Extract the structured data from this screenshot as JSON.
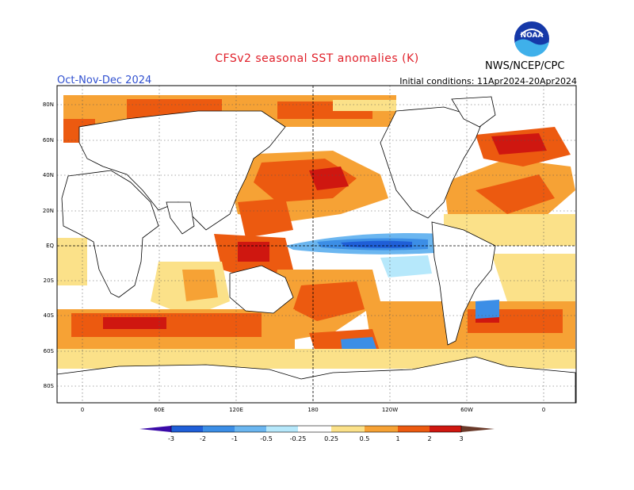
{
  "header": {
    "title": "CFSv2 seasonal SST anomalies (K)",
    "period": "Oct-Nov-Dec 2024",
    "initial_conditions": "Initial conditions: 11Apr2024-20Apr2024",
    "agency": "NWS/NCEP/CPC",
    "logo_text": "NOAA"
  },
  "map": {
    "lat_labels": [
      "80N",
      "60N",
      "40N",
      "20N",
      "EQ",
      "20S",
      "40S",
      "60S",
      "80S"
    ],
    "lon_labels": [
      "0",
      "60E",
      "120E",
      "180",
      "120W",
      "60W",
      "0"
    ]
  },
  "colorbar": {
    "labels": [
      "-3",
      "-2",
      "-1",
      "-0.5",
      "-0.25",
      "0.25",
      "0.5",
      "1",
      "2",
      "3"
    ],
    "colors": [
      "#3a0aa8",
      "#1f5fd8",
      "#3c8ee6",
      "#6bb6f0",
      "#b6e8fb",
      "#ffffff",
      "#fbe189",
      "#f6a235",
      "#ec5a10",
      "#cf1710",
      "#9b0d0d",
      "#6a3a2a"
    ]
  },
  "colors": {
    "land": "#ffffff",
    "coast": "#000000",
    "grid": "#555555"
  }
}
